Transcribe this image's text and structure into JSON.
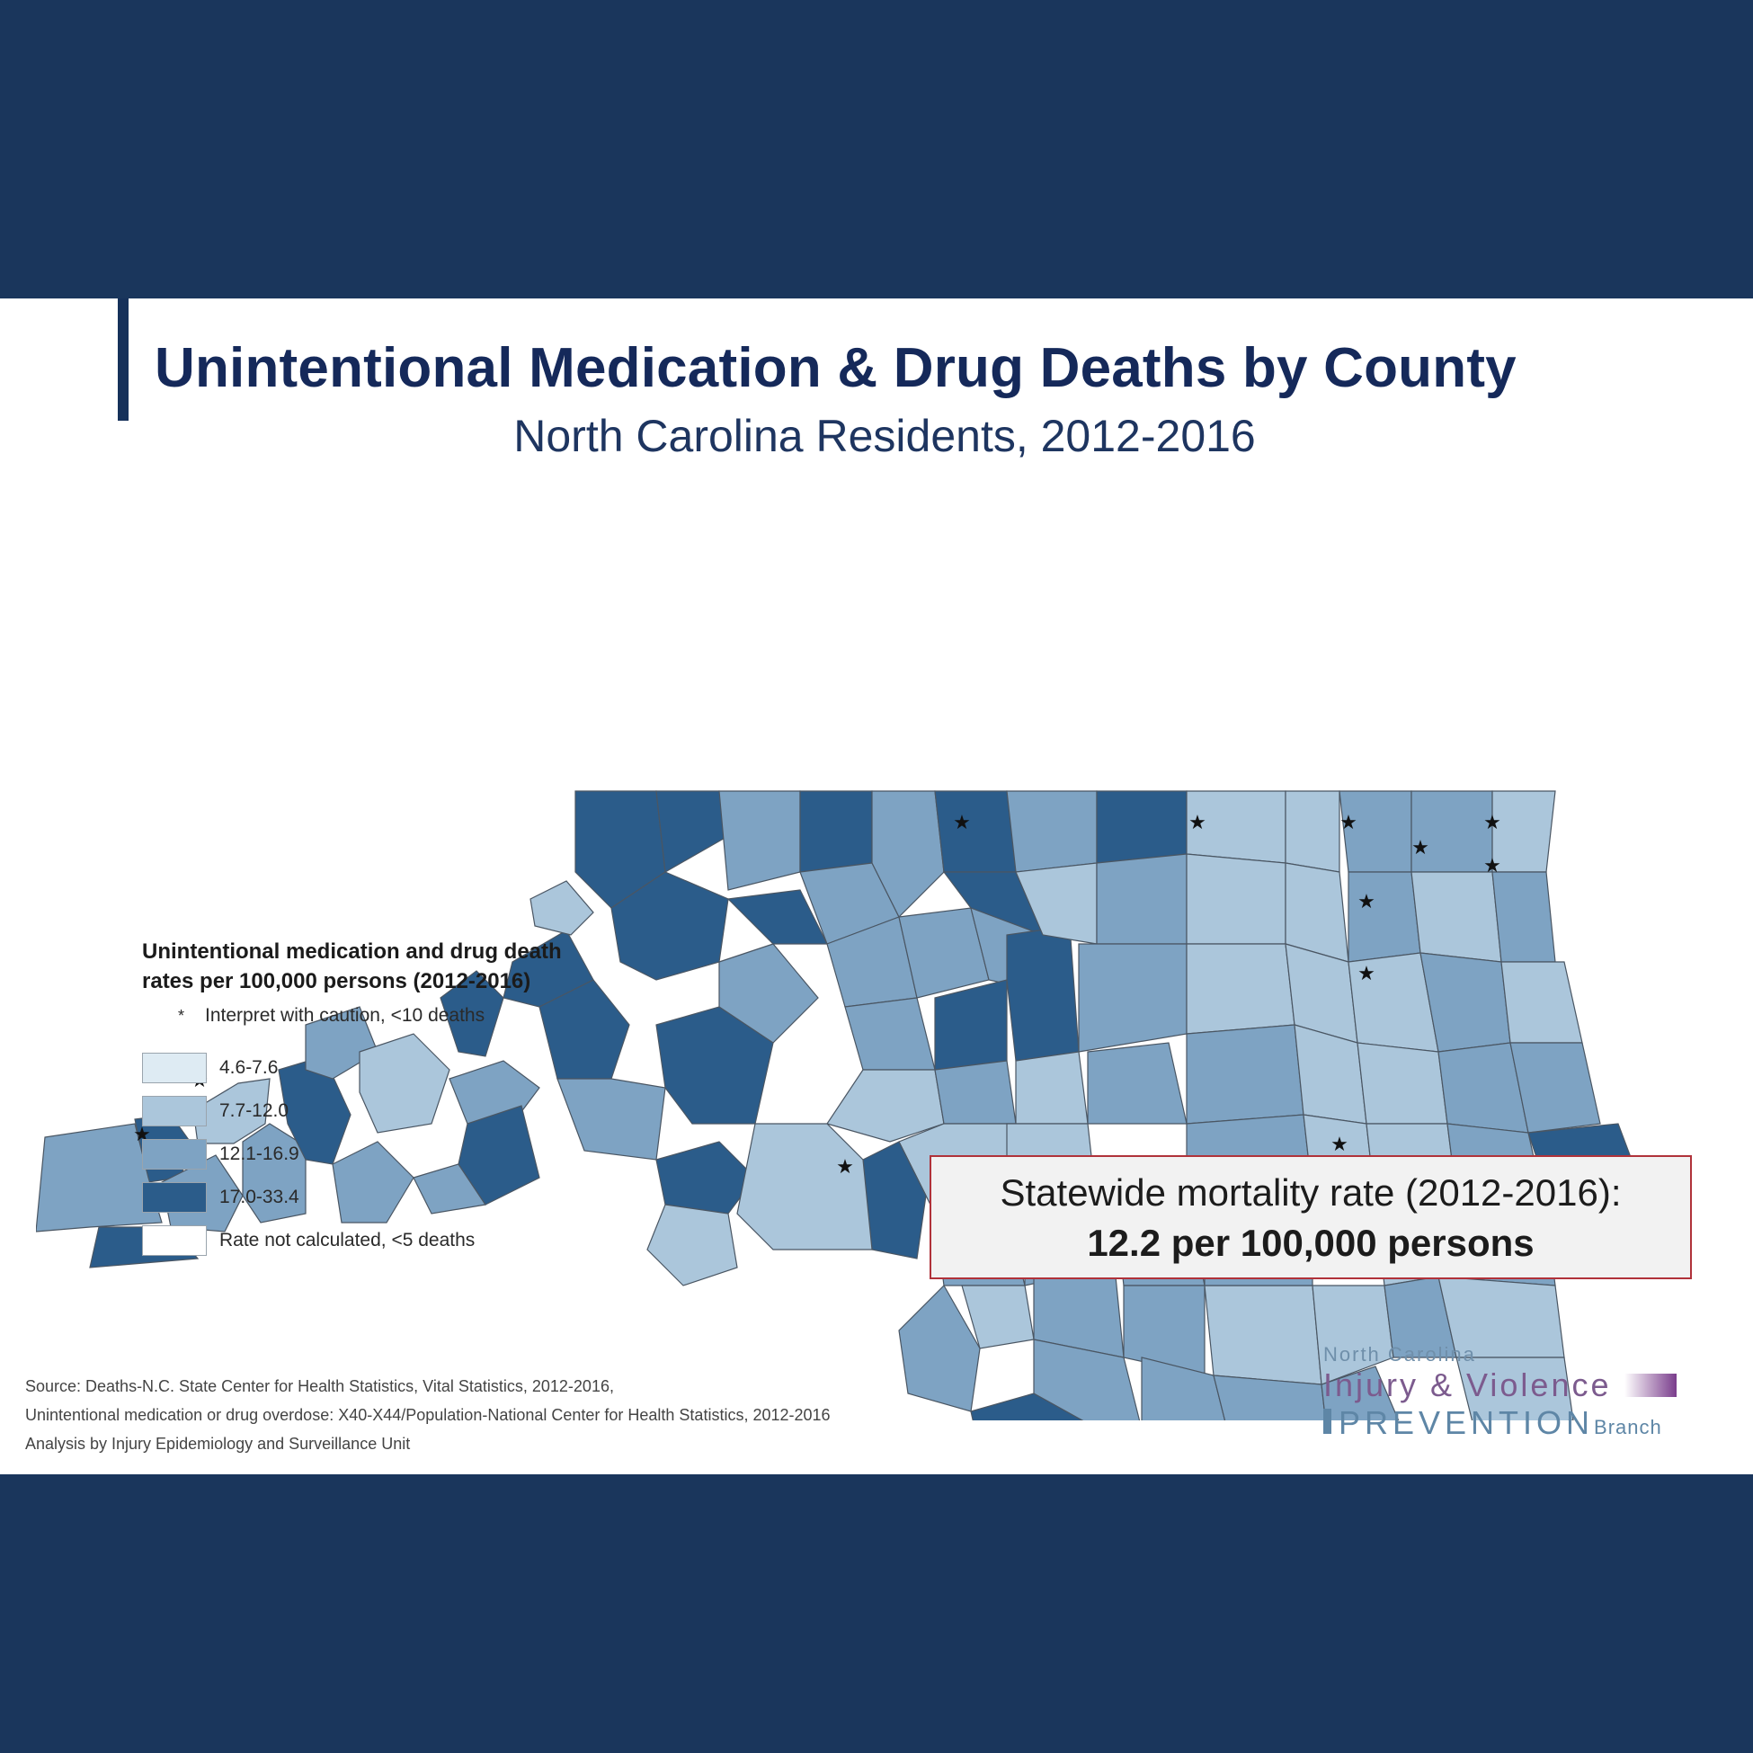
{
  "title": "Unintentional Medication & Drug Deaths by County",
  "subtitle": "North Carolina Residents, 2012-2016",
  "legend": {
    "title": "Unintentional medication and drug death\nrates per 100,000 persons (2012-2016)",
    "star_symbol": "*",
    "star_note": "Interpret with caution, <10 deaths",
    "classes": [
      {
        "label": "4.6-7.6",
        "color": "#deebf3"
      },
      {
        "label": "7.7-12.0",
        "color": "#abc6db"
      },
      {
        "label": "12.1-16.9",
        "color": "#7ea3c3"
      },
      {
        "label": "17.0-33.4",
        "color": "#2b5c8a"
      },
      {
        "label": "Rate not calculated, <5 deaths",
        "color": "#ffffff"
      }
    ]
  },
  "rate_box": {
    "line1": "Statewide mortality rate (2012-2016):",
    "line2": "12.2 per 100,000 persons"
  },
  "source": {
    "line1": "Source: Deaths-N.C. State Center for Health Statistics, Vital Statistics, 2012-2016,",
    "line2": "Unintentional medication or drug overdose: X40-X44/Population-National Center for Health Statistics, 2012-2016",
    "line3": "Analysis by Injury Epidemiology and Surveillance Unit"
  },
  "logo": {
    "line1": "North Carolina",
    "line2": "Injury & Violence",
    "line3": "PREVENTION",
    "line3_suffix": "Branch"
  },
  "map_star": "★"
}
